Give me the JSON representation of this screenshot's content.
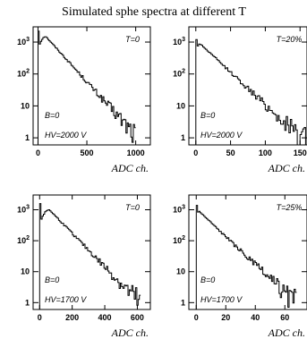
{
  "title": "Simulated sphe spectra at different T",
  "chart_data": [
    {
      "type": "histogram",
      "panel": "top-left",
      "xlabel": "ADC ch.",
      "ylabel": "",
      "yscale": "log",
      "xlim": [
        -50,
        1150
      ],
      "ylim": [
        0.6,
        3000
      ],
      "xticks": [
        0,
        500,
        1000
      ],
      "xtick_labels": [
        "0",
        "500",
        "1000"
      ],
      "ytick_labels": [
        "1",
        "10",
        "10",
        "10"
      ],
      "ytick_exps": [
        "",
        "",
        "2",
        "3"
      ],
      "annotations": {
        "temperature": "T=0",
        "field": "B=0",
        "voltage": "HV=2000 V"
      },
      "hist": {
        "x_start": 0,
        "x_end": 1000,
        "peak_x": 80,
        "peak_y": 1500,
        "decay": 0.0078,
        "rise_width": 50,
        "spike_y": 2200
      }
    },
    {
      "type": "histogram",
      "panel": "top-right",
      "xlabel": "ADC ch.",
      "ylabel": "",
      "yscale": "log",
      "xlim": [
        -10,
        160
      ],
      "ylim": [
        0.6,
        3000
      ],
      "xticks": [
        0,
        50,
        100,
        150
      ],
      "xtick_labels": [
        "0",
        "50",
        "100",
        "150"
      ],
      "ytick_labels": [
        "1",
        "10",
        "10",
        "10"
      ],
      "ytick_exps": [
        "",
        "",
        "2",
        "3"
      ],
      "annotations": {
        "temperature": "T=20%",
        "field": "B=0",
        "voltage": "HV=2000 V"
      },
      "hist": {
        "x_start": 0,
        "x_end": 160,
        "peak_x": 6,
        "peak_y": 900,
        "decay": 0.047,
        "rise_width": 4,
        "spike_y": 1200
      }
    },
    {
      "type": "histogram",
      "panel": "bottom-left",
      "xlabel": "ADC ch.",
      "ylabel": "",
      "yscale": "log",
      "xlim": [
        -40,
        680
      ],
      "ylim": [
        0.6,
        3000
      ],
      "xticks": [
        0,
        200,
        400,
        600
      ],
      "xtick_labels": [
        "0",
        "200",
        "400",
        "600"
      ],
      "ytick_labels": [
        "1",
        "10",
        "10",
        "10"
      ],
      "ytick_exps": [
        "",
        "",
        "2",
        "3"
      ],
      "annotations": {
        "temperature": "T=0",
        "field": "B=0",
        "voltage": "HV=1700 V"
      },
      "hist": {
        "x_start": 0,
        "x_end": 620,
        "peak_x": 60,
        "peak_y": 1000,
        "decay": 0.0125,
        "rise_width": 35,
        "spike_y": 1600
      }
    },
    {
      "type": "histogram",
      "panel": "bottom-right",
      "xlabel": "ADC ch.",
      "ylabel": "",
      "yscale": "log",
      "xlim": [
        -5,
        75
      ],
      "ylim": [
        0.6,
        3000
      ],
      "xticks": [
        0,
        20,
        40,
        60
      ],
      "xtick_labels": [
        "0",
        "20",
        "40",
        "60"
      ],
      "ytick_labels": [
        "1",
        "10",
        "10",
        "10"
      ],
      "ytick_exps": [
        "",
        "",
        "2",
        "3"
      ],
      "annotations": {
        "temperature": "T=25%",
        "field": "B=0",
        "voltage": "HV=1700 V"
      },
      "hist": {
        "x_start": 0,
        "x_end": 68,
        "peak_x": 2,
        "peak_y": 900,
        "decay": 0.105,
        "rise_width": 1.5,
        "spike_y": 1400
      }
    }
  ]
}
